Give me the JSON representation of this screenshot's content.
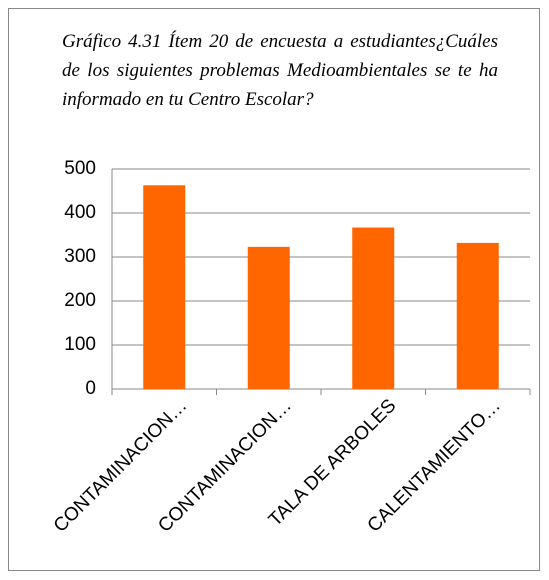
{
  "chart_data": {
    "type": "bar",
    "title": "Gráfico 4.31 Ítem 20 de encuesta a estudiantes¿Cuáles de los siguientes problemas Medioambientales se te ha informado en tu Centro Escolar?",
    "categories": [
      "CONTAMINACION…",
      "CONTAMINACION…",
      "TALA DE ARBOLES",
      "CALENTAMIENTO…"
    ],
    "values": [
      463,
      323,
      367,
      332
    ],
    "color": "#ff6600",
    "ylim": [
      0,
      500
    ],
    "yticks": [
      0,
      100,
      200,
      300,
      400,
      500
    ],
    "grid": true
  }
}
